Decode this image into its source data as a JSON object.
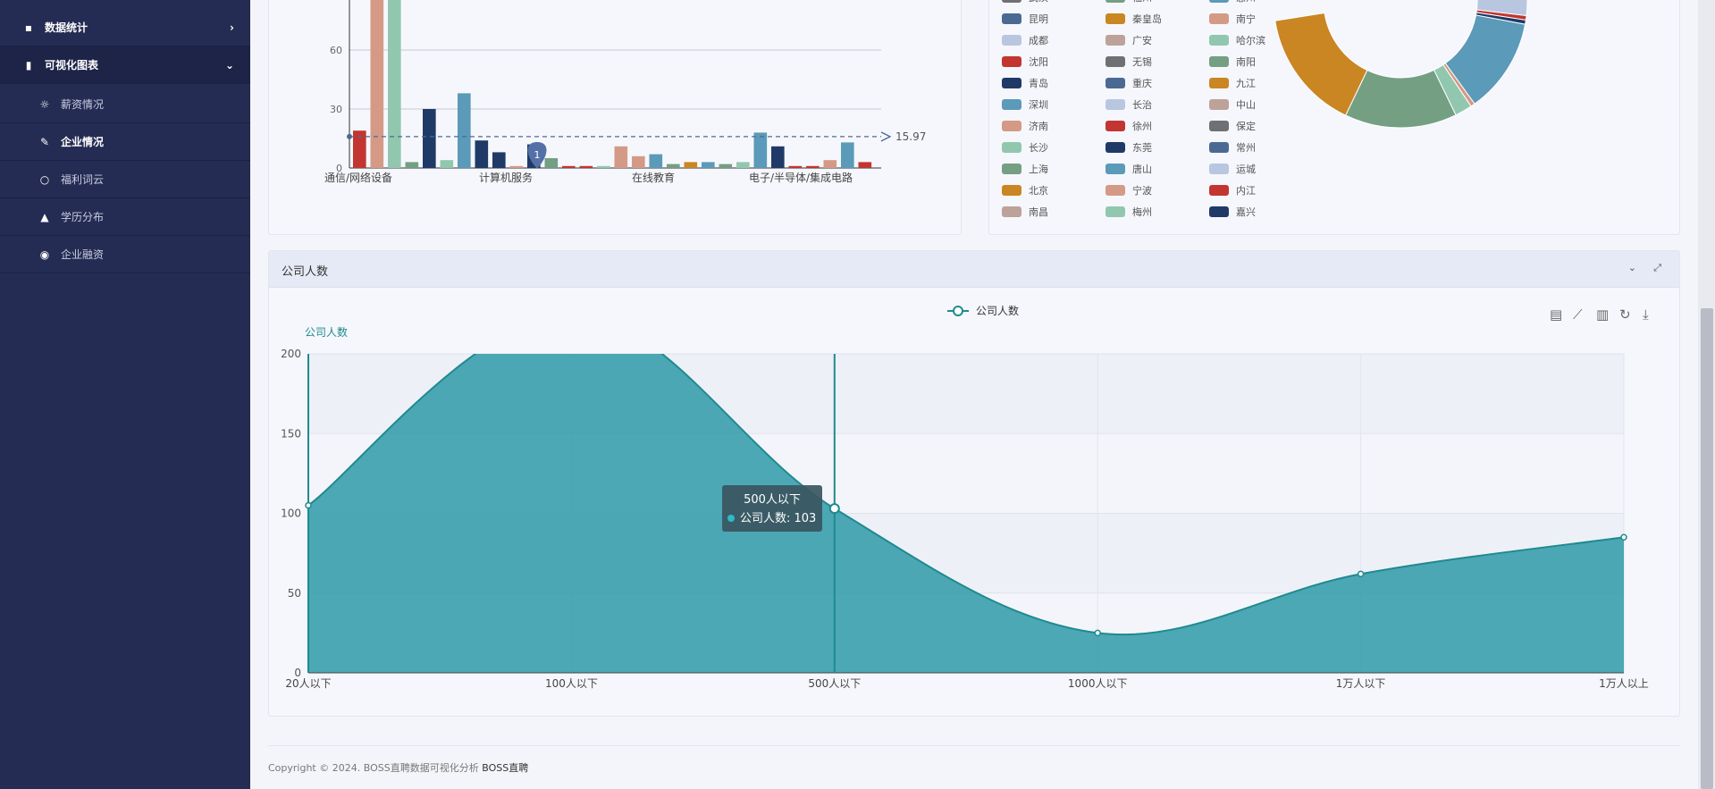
{
  "sidebar": {
    "items": [
      {
        "label": "数据统计",
        "icon": "grid-icon",
        "chev": "›"
      },
      {
        "label": "可视化图表",
        "icon": "bar-chart-icon",
        "chev": "⌄"
      },
      {
        "label": "薪资情况",
        "icon": "sun-icon"
      },
      {
        "label": "企业情况",
        "icon": "feather-icon"
      },
      {
        "label": "福利词云",
        "icon": "lightbulb-icon"
      },
      {
        "label": "学历分布",
        "icon": "graduation-cap-icon"
      },
      {
        "label": "企业融资",
        "icon": "globe-icon"
      }
    ]
  },
  "bar_chart": {
    "type": "bar",
    "ticks": [
      "0",
      "30",
      "60"
    ],
    "categories": [
      "通信/网络设备",
      "计算机服务",
      "在线教育",
      "电子/半导体/集成电路"
    ],
    "mark_point": "1",
    "mark_line": "15.97",
    "values": [
      19,
      104,
      104,
      3,
      30,
      4,
      38,
      14,
      8,
      1,
      12,
      5,
      1,
      1,
      1,
      11,
      6,
      7,
      2,
      3,
      3,
      2,
      3,
      18,
      11,
      1,
      1,
      4,
      13,
      3
    ],
    "colors": [
      "#c23531",
      "#d49a86",
      "#91c7ae",
      "#749f83",
      "#1f3a66",
      "#91c7ae",
      "#5b9ab8",
      "#1f3a66",
      "#1f3a66",
      "#d49a86",
      "#1f3a66",
      "#749f83",
      "#c23531",
      "#c23531",
      "#91c7ae",
      "#d49a86",
      "#d49a86",
      "#5b9ab8",
      "#749f83",
      "#ca8622",
      "#5b9ab8",
      "#749f83",
      "#91c7ae",
      "#5b9ab8",
      "#1f3a66",
      "#c23531",
      "#c23531",
      "#d49a86",
      "#5b9ab8",
      "#c23531"
    ]
  },
  "pie_legend": {
    "rows": [
      [
        {
          "n": "武汉",
          "c": "#6e7074"
        },
        {
          "n": "福州",
          "c": "#749f83"
        },
        {
          "n": "惠州",
          "c": "#5b9ab8"
        }
      ],
      [
        {
          "n": "昆明",
          "c": "#4b6a93"
        },
        {
          "n": "秦皇岛",
          "c": "#ca8622"
        },
        {
          "n": "南宁",
          "c": "#d49a86"
        }
      ],
      [
        {
          "n": "成都",
          "c": "#b8c6e0"
        },
        {
          "n": "广安",
          "c": "#bda29a"
        },
        {
          "n": "哈尔滨",
          "c": "#91c7ae"
        }
      ],
      [
        {
          "n": "沈阳",
          "c": "#c23531"
        },
        {
          "n": "无锡",
          "c": "#6e7074"
        },
        {
          "n": "南阳",
          "c": "#749f83"
        }
      ],
      [
        {
          "n": "青岛",
          "c": "#1f3a66"
        },
        {
          "n": "重庆",
          "c": "#4b6a93"
        },
        {
          "n": "九江",
          "c": "#ca8622"
        }
      ],
      [
        {
          "n": "深圳",
          "c": "#5b9ab8"
        },
        {
          "n": "长治",
          "c": "#b8c6e0"
        },
        {
          "n": "中山",
          "c": "#bda29a"
        }
      ],
      [
        {
          "n": "济南",
          "c": "#d49a86"
        },
        {
          "n": "徐州",
          "c": "#c23531"
        },
        {
          "n": "保定",
          "c": "#6e7074"
        }
      ],
      [
        {
          "n": "长沙",
          "c": "#91c7ae"
        },
        {
          "n": "东莞",
          "c": "#1f3a66"
        },
        {
          "n": "常州",
          "c": "#4b6a93"
        }
      ],
      [
        {
          "n": "上海",
          "c": "#749f83"
        },
        {
          "n": "唐山",
          "c": "#5b9ab8"
        },
        {
          "n": "运城",
          "c": "#b8c6e0"
        }
      ],
      [
        {
          "n": "北京",
          "c": "#ca8622"
        },
        {
          "n": "宁波",
          "c": "#d49a86"
        },
        {
          "n": "内江",
          "c": "#c23531"
        }
      ],
      [
        {
          "n": "南昌",
          "c": "#bda29a"
        },
        {
          "n": "梅州",
          "c": "#91c7ae"
        },
        {
          "n": "嘉兴",
          "c": "#1f3a66"
        }
      ]
    ]
  },
  "donut": {
    "slices": [
      {
        "v": 28,
        "c": "#ca8622"
      },
      {
        "v": 26,
        "c": "#749f83"
      },
      {
        "v": 4,
        "c": "#91c7ae"
      },
      {
        "v": 1,
        "c": "#d49a86"
      },
      {
        "v": 22,
        "c": "#5b9ab8"
      },
      {
        "v": 1,
        "c": "#1f3a66"
      },
      {
        "v": 1,
        "c": "#c23531"
      },
      {
        "v": 8,
        "c": "#b8c6e0"
      },
      {
        "v": 5,
        "c": "#6e7074"
      },
      {
        "v": 2,
        "c": "#bda29a"
      },
      {
        "v": 2,
        "c": "#b8c6e0"
      }
    ]
  },
  "company_card": {
    "title": "公司人数",
    "collapse_icon": "⌄",
    "expand_icon": "⤢"
  },
  "chart_data": {
    "type": "area",
    "title": "",
    "legend": "公司人数",
    "ylabel": "公司人数",
    "ylim": [
      0,
      200
    ],
    "yticks": [
      "0",
      "50",
      "100",
      "150",
      "200"
    ],
    "categories": [
      "20人以下",
      "100人以下",
      "500人以下",
      "1000人以下",
      "1万人以下",
      "1万人以上"
    ],
    "series": [
      {
        "name": "公司人数",
        "values": [
          105,
          225,
          103,
          25,
          62,
          85
        ]
      }
    ],
    "tooltip": {
      "title": "500人以下",
      "label": "公司人数: 103"
    },
    "color": "#2e9aa7"
  },
  "toolbox": [
    "data-view-icon",
    "line-icon",
    "bar-icon",
    "restore-icon",
    "download-icon"
  ],
  "footer": {
    "text": "Copyright © 2024. BOSS直聘数据可视化分析",
    "brand": "BOSS直聘"
  }
}
